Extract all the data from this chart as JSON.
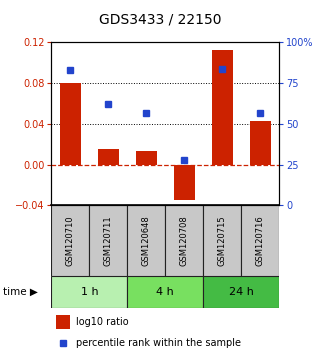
{
  "title": "GDS3433 / 22150",
  "samples": [
    "GSM120710",
    "GSM120711",
    "GSM120648",
    "GSM120708",
    "GSM120715",
    "GSM120716"
  ],
  "log10_ratio": [
    0.08,
    0.015,
    0.013,
    -0.035,
    0.113,
    0.043
  ],
  "percentile_rank": [
    83,
    62,
    57,
    28,
    84,
    57
  ],
  "groups": [
    {
      "label": "1 h",
      "start": 0,
      "end": 2,
      "color": "#b8f0b0"
    },
    {
      "label": "4 h",
      "start": 2,
      "end": 4,
      "color": "#78e060"
    },
    {
      "label": "24 h",
      "start": 4,
      "end": 6,
      "color": "#44bb44"
    }
  ],
  "left_ylim": [
    -0.04,
    0.12
  ],
  "left_yticks": [
    -0.04,
    0.0,
    0.04,
    0.08,
    0.12
  ],
  "right_ylim": [
    0,
    100
  ],
  "right_yticks": [
    0,
    25,
    50,
    75,
    100
  ],
  "right_yticklabels": [
    "0",
    "25",
    "50",
    "75",
    "100%"
  ],
  "bar_color": "#cc2200",
  "dot_color": "#2244cc",
  "hline_zero_color": "#cc2200",
  "hline_dotted_vals": [
    0.04,
    0.08
  ],
  "sample_box_color": "#c8c8c8",
  "sample_box_edge": "#222222",
  "legend_entries": [
    "log10 ratio",
    "percentile rank within the sample"
  ],
  "title_fontsize": 10,
  "tick_fontsize": 7,
  "label_fontsize": 6,
  "time_fontsize": 7.5,
  "group_fontsize": 8,
  "legend_fontsize": 7
}
